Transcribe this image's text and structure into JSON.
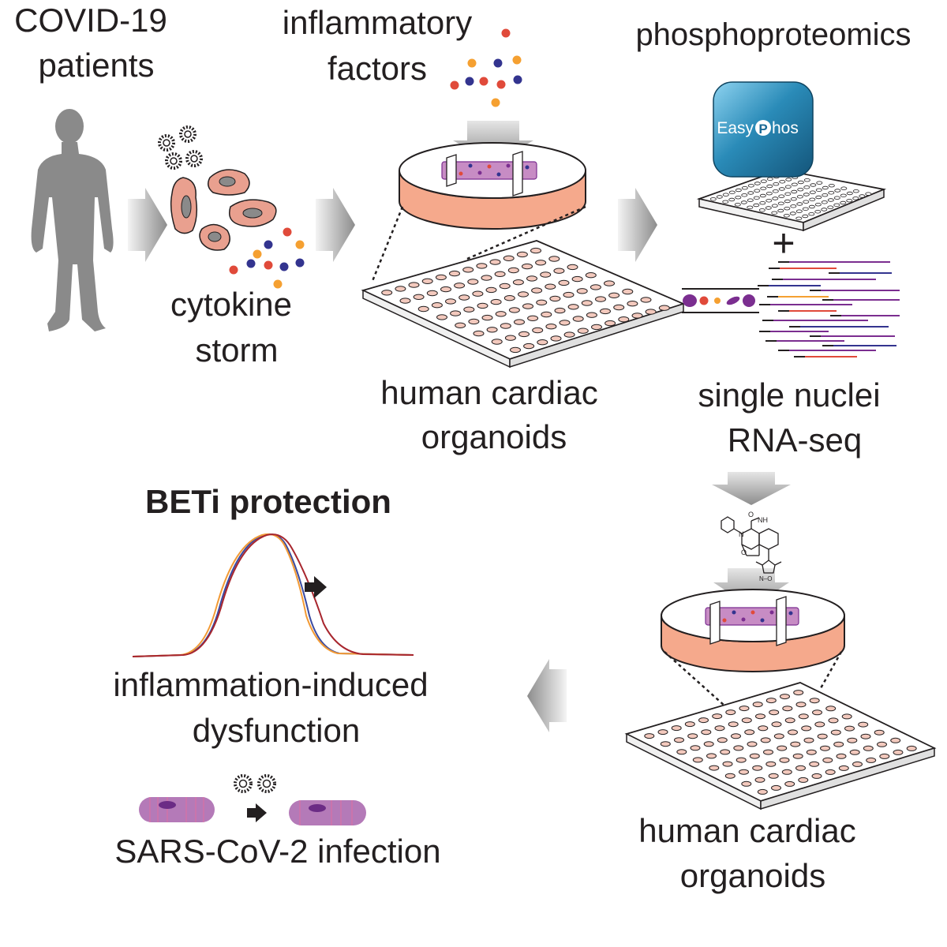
{
  "labels": {
    "covid_line1": "COVID-19",
    "covid_line2": "patients",
    "infl_line1": "inflammatory",
    "infl_line2": "factors",
    "phospho": "phosphoproteomics",
    "storm_line1": "cytokine",
    "storm_line2": "storm",
    "hco1_line1": "human cardiac",
    "hco1_line2": "organoids",
    "snrna_line1": "single nuclei",
    "snrna_line2": "RNA-seq",
    "beti": "BETi protection",
    "dysf_line1": "inflammation-induced",
    "dysf_line2": "dysfunction",
    "sars": "SARS-CoV-2 infection",
    "hco2_line1": "human cardiac",
    "hco2_line2": "organoids",
    "easyphos_left": "Easy",
    "easyphos_p": "P",
    "easyphos_right": "hos",
    "plus": "+",
    "nh": "NH",
    "o1": "O",
    "n1": "N",
    "o2": "O",
    "iso": "N–O"
  },
  "colors": {
    "red": "#e04a3a",
    "orange": "#f5a031",
    "navy": "#33348f",
    "purple": "#7b2e90",
    "cell_pink": "#e9a08f",
    "dish_orange": "#f5a98c",
    "gray": "#8a8a8a",
    "curve_blue": "#3a4aa0",
    "curve_orange": "#f29a35",
    "curve_red": "#a8262e"
  },
  "icons": [
    "human-silhouette-icon",
    "virus-icon",
    "cardiomyocyte-cell-icon",
    "petri-dish-icon",
    "well-plate-icon",
    "easyphos-device-icon",
    "sequencing-reads-icon",
    "beti-molecule-icon",
    "contraction-curve-icon",
    "gray-arrow-icon"
  ]
}
